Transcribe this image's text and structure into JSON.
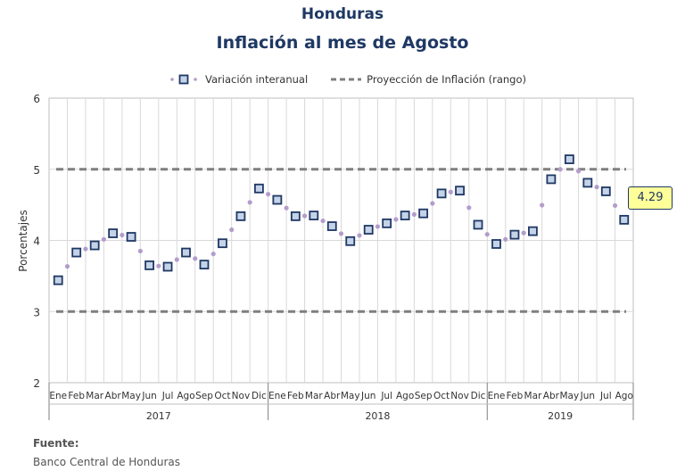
{
  "title": "Honduras",
  "subtitle": "Inflación al mes de Agosto",
  "legend": {
    "series1": "Variación interanual",
    "series2": "Proyección de Inflación (rango)"
  },
  "colors": {
    "title": "#1f3864",
    "marker_edge": "#1f3864",
    "marker_fill": "#c5d3e8",
    "dots": "#b39dcc",
    "range_line": "#7f7f7f",
    "callout_bg": "#ffff99"
  },
  "callout": "4.29",
  "footer": {
    "label": "Fuente:",
    "source": "Banco Central de Honduras"
  },
  "chart_data": {
    "type": "line",
    "ylabel": "Porcentajes",
    "ylim": [
      2,
      6
    ],
    "yticks": [
      "2",
      "3",
      "4",
      "5",
      "6"
    ],
    "grid": true,
    "legend_position": "top",
    "categories": [
      "Ene",
      "Feb",
      "Mar",
      "Abr",
      "May",
      "Jun",
      "Jul",
      "Ago",
      "Sep",
      "Oct",
      "Nov",
      "Dic",
      "Ene",
      "Feb",
      "Mar",
      "Abr",
      "May",
      "Jun",
      "Jul",
      "Ago",
      "Sep",
      "Oct",
      "Nov",
      "Dic",
      "Ene",
      "Feb",
      "Mar",
      "Abr",
      "May",
      "Jun",
      "Jul",
      "Ago"
    ],
    "years": [
      {
        "label": "2017",
        "count": 12
      },
      {
        "label": "2018",
        "count": 12
      },
      {
        "label": "2019",
        "count": 8
      }
    ],
    "series": [
      {
        "name": "Variación interanual",
        "values": [
          3.44,
          3.83,
          3.93,
          4.1,
          4.05,
          3.65,
          3.63,
          3.83,
          3.66,
          3.96,
          4.34,
          4.73,
          4.57,
          4.34,
          4.35,
          4.2,
          3.99,
          4.15,
          4.24,
          4.35,
          4.38,
          4.66,
          4.7,
          4.22,
          3.95,
          4.08,
          4.13,
          4.86,
          5.14,
          4.81,
          4.69,
          4.29
        ]
      },
      {
        "name": "Proyección de Inflación (rango)",
        "lower": 3,
        "upper": 5
      }
    ]
  }
}
